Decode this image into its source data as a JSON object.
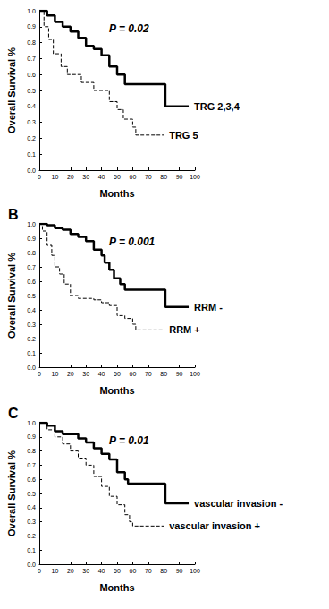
{
  "chart_data": [
    {
      "type": "line",
      "annotation": "P = 0.02",
      "xlabel": "Months",
      "ylabel": "Overall Survival %",
      "xlim": [
        0,
        100
      ],
      "xticks": [
        0,
        10,
        20,
        30,
        40,
        50,
        60,
        70,
        80,
        90,
        100
      ],
      "ylim": [
        0,
        1
      ],
      "yticks": [
        {
          "value": 0,
          "label": "0.0"
        },
        {
          "value": 0.1,
          "label": "0.1"
        },
        {
          "value": 0.2,
          "label": "0.2"
        },
        {
          "value": 0.3,
          "label": "0.3"
        },
        {
          "value": 0.4,
          "label": "0.4"
        },
        {
          "value": 0.5,
          "label": "0.5"
        },
        {
          "value": 0.6,
          "label": "0.6"
        },
        {
          "value": 0.7,
          "label": "0.7"
        },
        {
          "value": 0.8,
          "label": "0.8"
        },
        {
          "value": 0.9,
          "label": "0.9"
        },
        {
          "value": 1,
          "label": "1.0"
        }
      ],
      "grid": false,
      "series": [
        {
          "name": "TRG 2,3,4",
          "color": "#000000",
          "line_style": "solid",
          "x": [
            0,
            5,
            10,
            15,
            20,
            25,
            30,
            35,
            40,
            45,
            50,
            55,
            81,
            96
          ],
          "values": [
            1.0,
            0.97,
            0.93,
            0.9,
            0.87,
            0.83,
            0.78,
            0.76,
            0.72,
            0.65,
            0.6,
            0.54,
            0.4,
            0.4
          ]
        },
        {
          "name": "TRG 5",
          "color": "#000000",
          "line_style": "dashed",
          "x": [
            0,
            3,
            6,
            9,
            14,
            18,
            27,
            35,
            45,
            50,
            54,
            60,
            62,
            80
          ],
          "values": [
            1.0,
            0.9,
            0.82,
            0.73,
            0.65,
            0.6,
            0.55,
            0.5,
            0.43,
            0.38,
            0.32,
            0.27,
            0.22,
            0.22
          ]
        }
      ]
    },
    {
      "type": "line",
      "title": "B",
      "annotation": "P = 0.001",
      "xlabel": "Months",
      "ylabel": "Overall Survival %",
      "xlim": [
        0,
        100
      ],
      "xticks": [
        0,
        10,
        20,
        30,
        40,
        50,
        60,
        70,
        80,
        90,
        100
      ],
      "ylim": [
        0,
        1
      ],
      "yticks": [
        {
          "value": 0,
          "label": "0.0"
        },
        {
          "value": 0.1,
          "label": "0.1"
        },
        {
          "value": 0.2,
          "label": "0.2"
        },
        {
          "value": 0.3,
          "label": "0.3"
        },
        {
          "value": 0.4,
          "label": "0.4"
        },
        {
          "value": 0.5,
          "label": "0.5"
        },
        {
          "value": 0.6,
          "label": "0.6"
        },
        {
          "value": 0.7,
          "label": "0.7"
        },
        {
          "value": 0.8,
          "label": "0.8"
        },
        {
          "value": 0.9,
          "label": "0.9"
        },
        {
          "value": 1,
          "label": "1.0"
        }
      ],
      "grid": false,
      "series": [
        {
          "name": "RRM -",
          "color": "#000000",
          "line_style": "solid",
          "x": [
            0,
            5,
            10,
            15,
            20,
            25,
            30,
            35,
            40,
            42,
            45,
            48,
            52,
            55,
            81,
            96
          ],
          "values": [
            1.0,
            0.99,
            0.97,
            0.96,
            0.93,
            0.91,
            0.88,
            0.82,
            0.78,
            0.73,
            0.68,
            0.62,
            0.58,
            0.54,
            0.42,
            0.42
          ]
        },
        {
          "name": "RRM +",
          "color": "#000000",
          "line_style": "dashed",
          "x": [
            0,
            2,
            5,
            8,
            10,
            13,
            16,
            20,
            25,
            35,
            40,
            45,
            50,
            55,
            60,
            62,
            80
          ],
          "values": [
            1.0,
            0.95,
            0.85,
            0.78,
            0.7,
            0.65,
            0.58,
            0.5,
            0.48,
            0.47,
            0.45,
            0.43,
            0.36,
            0.34,
            0.3,
            0.26,
            0.26
          ]
        }
      ]
    },
    {
      "type": "line",
      "title": "C",
      "annotation": "P = 0.01",
      "xlabel": "Months",
      "ylabel": "Overall Survival %",
      "xlim": [
        0,
        100
      ],
      "xticks": [
        0,
        10,
        20,
        30,
        40,
        50,
        60,
        70,
        80,
        90,
        100
      ],
      "ylim": [
        0,
        1
      ],
      "yticks": [
        {
          "value": 0,
          "label": "0.0"
        },
        {
          "value": 0.1,
          "label": "0.1"
        },
        {
          "value": 0.2,
          "label": "0.2"
        },
        {
          "value": 0.3,
          "label": "0.3"
        },
        {
          "value": 0.4,
          "label": "0.4"
        },
        {
          "value": 0.5,
          "label": "0.5"
        },
        {
          "value": 0.6,
          "label": "0.6"
        },
        {
          "value": 0.7,
          "label": "0.7"
        },
        {
          "value": 0.8,
          "label": "0.8"
        },
        {
          "value": 0.9,
          "label": "0.9"
        },
        {
          "value": 1,
          "label": "1.0"
        }
      ],
      "grid": false,
      "series": [
        {
          "name": "vascular invasion -",
          "color": "#000000",
          "line_style": "solid",
          "x": [
            0,
            5,
            10,
            15,
            25,
            30,
            35,
            40,
            45,
            50,
            55,
            57,
            81,
            96
          ],
          "values": [
            1.0,
            0.98,
            0.94,
            0.92,
            0.89,
            0.86,
            0.82,
            0.78,
            0.74,
            0.65,
            0.6,
            0.57,
            0.43,
            0.43
          ]
        },
        {
          "name": "vascular invasion +",
          "color": "#000000",
          "line_style": "dashed",
          "x": [
            0,
            5,
            10,
            15,
            20,
            25,
            30,
            35,
            40,
            45,
            50,
            55,
            58,
            60,
            80
          ],
          "values": [
            1.0,
            0.95,
            0.9,
            0.85,
            0.8,
            0.75,
            0.7,
            0.62,
            0.55,
            0.48,
            0.42,
            0.35,
            0.3,
            0.27,
            0.27
          ]
        }
      ]
    }
  ]
}
